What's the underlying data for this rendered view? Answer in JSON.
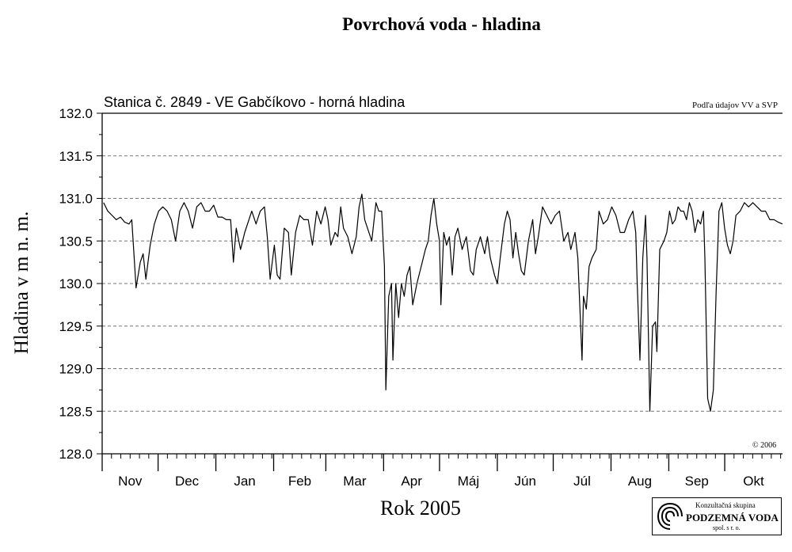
{
  "title": "Povrchová voda - hladina",
  "subtitle": "Stanica č. 2849 - VE Gabčíkovo - horná hladina",
  "source_note": "Podľa údajov VV a SVP",
  "copyright": "© 2006",
  "logo": {
    "line1": "Konzultačná skupina",
    "line2": "PODZEMNÁ VODA",
    "line3": "spol. s r. o."
  },
  "chart_data": {
    "type": "line",
    "xlabel": "Rok 2005",
    "ylabel": "Hladina v m n. m.",
    "ylim": [
      128.0,
      132.0
    ],
    "yticks": [
      "128.0",
      "128.5",
      "129.0",
      "129.5",
      "130.0",
      "130.5",
      "131.0",
      "131.5",
      "132.0"
    ],
    "months": [
      "Nov",
      "Dec",
      "Jan",
      "Feb",
      "Mar",
      "Apr",
      "Máj",
      "Jún",
      "Júl",
      "Aug",
      "Sep",
      "Okt"
    ],
    "grid_y": "dashed",
    "x_unit": "day",
    "series": [
      {
        "points": [
          [
            1,
            130.95
          ],
          [
            4,
            130.85
          ],
          [
            7,
            130.8
          ],
          [
            10,
            130.75
          ],
          [
            13,
            130.78
          ],
          [
            16,
            130.72
          ],
          [
            19,
            130.7
          ],
          [
            21,
            130.75
          ],
          [
            24,
            129.95
          ],
          [
            27,
            130.25
          ],
          [
            29,
            130.35
          ],
          [
            31,
            130.05
          ],
          [
            34,
            130.45
          ],
          [
            37,
            130.7
          ],
          [
            40,
            130.85
          ],
          [
            43,
            130.9
          ],
          [
            46,
            130.85
          ],
          [
            49,
            130.75
          ],
          [
            52,
            130.5
          ],
          [
            55,
            130.85
          ],
          [
            58,
            130.95
          ],
          [
            61,
            130.85
          ],
          [
            64,
            130.65
          ],
          [
            67,
            130.9
          ],
          [
            70,
            130.95
          ],
          [
            73,
            130.85
          ],
          [
            76,
            130.85
          ],
          [
            79,
            130.92
          ],
          [
            82,
            130.78
          ],
          [
            85,
            130.78
          ],
          [
            88,
            130.75
          ],
          [
            91,
            130.75
          ],
          [
            93,
            130.25
          ],
          [
            95,
            130.65
          ],
          [
            98,
            130.4
          ],
          [
            101,
            130.6
          ],
          [
            104,
            130.75
          ],
          [
            106,
            130.85
          ],
          [
            109,
            130.7
          ],
          [
            112,
            130.85
          ],
          [
            115,
            130.9
          ],
          [
            117,
            130.55
          ],
          [
            119,
            130.05
          ],
          [
            122,
            130.45
          ],
          [
            124,
            130.1
          ],
          [
            126,
            130.05
          ],
          [
            129,
            130.65
          ],
          [
            132,
            130.6
          ],
          [
            134,
            130.1
          ],
          [
            137,
            130.6
          ],
          [
            140,
            130.8
          ],
          [
            143,
            130.75
          ],
          [
            146,
            130.75
          ],
          [
            149,
            130.45
          ],
          [
            152,
            130.85
          ],
          [
            155,
            130.7
          ],
          [
            158,
            130.9
          ],
          [
            160,
            130.75
          ],
          [
            162,
            130.45
          ],
          [
            165,
            130.6
          ],
          [
            167,
            130.55
          ],
          [
            169,
            130.9
          ],
          [
            171,
            130.65
          ],
          [
            174,
            130.55
          ],
          [
            177,
            130.35
          ],
          [
            180,
            130.55
          ],
          [
            182,
            130.9
          ],
          [
            184,
            131.05
          ],
          [
            186,
            130.75
          ],
          [
            188,
            130.65
          ],
          [
            191,
            130.5
          ],
          [
            194,
            130.95
          ],
          [
            196,
            130.85
          ],
          [
            198,
            130.85
          ],
          [
            200,
            130.2
          ],
          [
            201,
            128.75
          ],
          [
            203,
            129.85
          ],
          [
            205,
            130.0
          ],
          [
            206,
            129.1
          ],
          [
            208,
            130.0
          ],
          [
            210,
            129.6
          ],
          [
            212,
            130.0
          ],
          [
            214,
            129.85
          ],
          [
            216,
            130.1
          ],
          [
            218,
            130.2
          ],
          [
            220,
            129.75
          ],
          [
            223,
            130.0
          ],
          [
            226,
            130.2
          ],
          [
            229,
            130.4
          ],
          [
            231,
            130.5
          ],
          [
            233,
            130.8
          ],
          [
            235,
            131.0
          ],
          [
            237,
            130.7
          ],
          [
            239,
            130.5
          ],
          [
            240,
            129.75
          ],
          [
            242,
            130.6
          ],
          [
            244,
            130.45
          ],
          [
            246,
            130.55
          ],
          [
            248,
            130.1
          ],
          [
            250,
            130.55
          ],
          [
            252,
            130.65
          ],
          [
            255,
            130.4
          ],
          [
            258,
            130.55
          ],
          [
            261,
            130.15
          ],
          [
            263,
            130.1
          ],
          [
            265,
            130.4
          ],
          [
            268,
            130.55
          ],
          [
            271,
            130.35
          ],
          [
            273,
            130.55
          ],
          [
            275,
            130.3
          ],
          [
            278,
            130.1
          ],
          [
            280,
            130.0
          ],
          [
            282,
            130.3
          ],
          [
            285,
            130.7
          ],
          [
            287,
            130.85
          ],
          [
            289,
            130.75
          ],
          [
            291,
            130.3
          ],
          [
            293,
            130.6
          ],
          [
            295,
            130.35
          ],
          [
            297,
            130.15
          ],
          [
            299,
            130.1
          ],
          [
            302,
            130.5
          ],
          [
            305,
            130.75
          ],
          [
            307,
            130.35
          ],
          [
            309,
            130.55
          ],
          [
            312,
            130.9
          ],
          [
            315,
            130.8
          ],
          [
            318,
            130.7
          ],
          [
            321,
            130.8
          ],
          [
            324,
            130.85
          ],
          [
            327,
            130.5
          ],
          [
            330,
            130.6
          ],
          [
            332,
            130.4
          ],
          [
            335,
            130.6
          ],
          [
            337,
            130.3
          ],
          [
            340,
            129.1
          ],
          [
            341,
            129.85
          ],
          [
            343,
            129.7
          ],
          [
            345,
            130.2
          ],
          [
            347,
            130.3
          ],
          [
            350,
            130.4
          ],
          [
            352,
            130.85
          ],
          [
            355,
            130.7
          ],
          [
            358,
            130.75
          ],
          [
            361,
            130.9
          ],
          [
            364,
            130.8
          ],
          [
            367,
            130.6
          ],
          [
            370,
            130.6
          ],
          [
            373,
            130.75
          ],
          [
            376,
            130.85
          ],
          [
            378,
            130.6
          ],
          [
            379,
            130.05
          ],
          [
            381,
            129.1
          ],
          [
            383,
            130.3
          ],
          [
            385,
            130.8
          ],
          [
            386,
            130.3
          ],
          [
            388,
            128.5
          ],
          [
            390,
            129.5
          ],
          [
            392,
            129.55
          ],
          [
            393,
            129.2
          ],
          [
            395,
            130.4
          ],
          [
            398,
            130.5
          ],
          [
            400,
            130.6
          ],
          [
            402,
            130.85
          ],
          [
            404,
            130.7
          ],
          [
            406,
            130.75
          ],
          [
            408,
            130.9
          ],
          [
            410,
            130.85
          ],
          [
            412,
            130.85
          ],
          [
            414,
            130.75
          ],
          [
            416,
            130.95
          ],
          [
            418,
            130.85
          ],
          [
            420,
            130.6
          ],
          [
            422,
            130.75
          ],
          [
            424,
            130.7
          ],
          [
            426,
            130.85
          ],
          [
            427,
            130.3
          ],
          [
            429,
            128.65
          ],
          [
            431,
            128.5
          ],
          [
            433,
            128.75
          ],
          [
            435,
            129.9
          ],
          [
            437,
            130.85
          ],
          [
            439,
            130.95
          ],
          [
            441,
            130.65
          ],
          [
            443,
            130.45
          ],
          [
            445,
            130.35
          ],
          [
            447,
            130.5
          ],
          [
            449,
            130.8
          ],
          [
            452,
            130.85
          ],
          [
            455,
            130.95
          ],
          [
            458,
            130.9
          ],
          [
            461,
            130.95
          ],
          [
            464,
            130.9
          ],
          [
            467,
            130.85
          ],
          [
            470,
            130.85
          ],
          [
            473,
            130.75
          ],
          [
            476,
            130.75
          ],
          [
            479,
            130.72
          ],
          [
            482,
            130.7
          ]
        ]
      }
    ]
  }
}
